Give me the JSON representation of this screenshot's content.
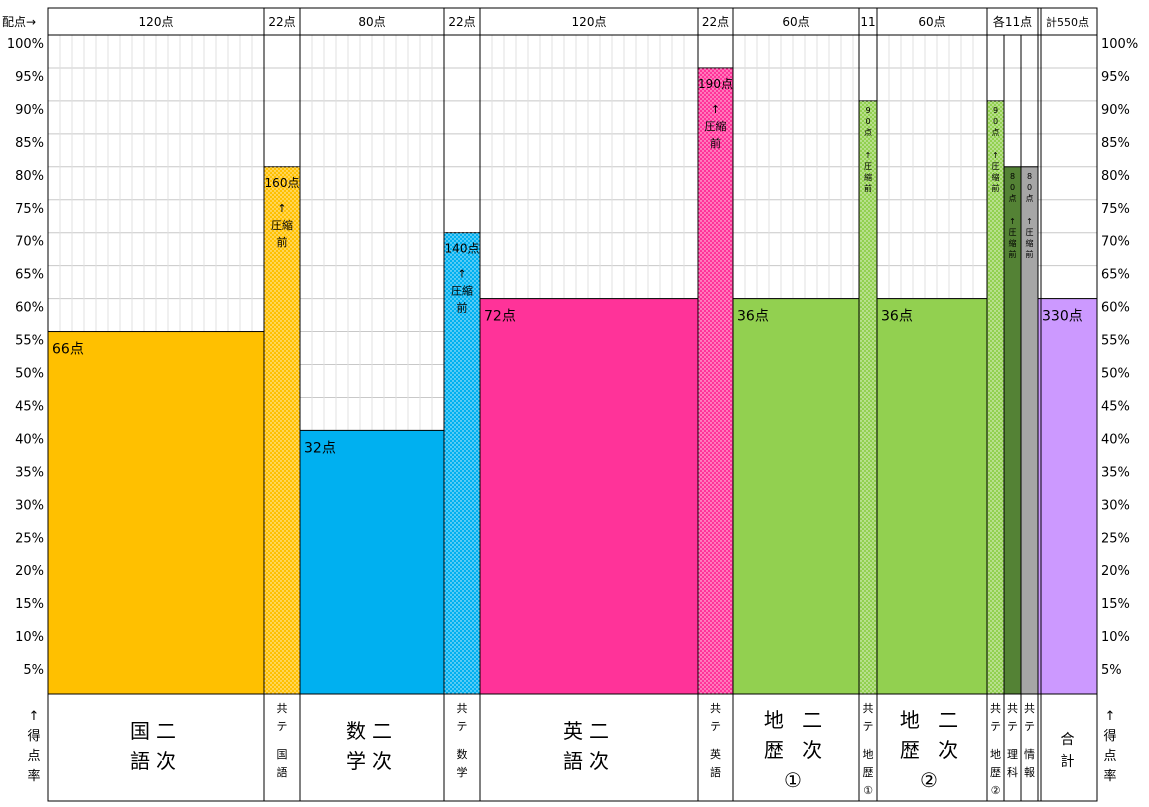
{
  "chart_data": {
    "type": "bar",
    "header_label": "配点→",
    "ylim": [
      0,
      100
    ],
    "yticks": [
      "100%",
      "95%",
      "90%",
      "85%",
      "80%",
      "75%",
      "70%",
      "65%",
      "60%",
      "55%",
      "50%",
      "45%",
      "40%",
      "35%",
      "30%",
      "25%",
      "20%",
      "15%",
      "10%",
      "5%"
    ],
    "y_axis_label_left": [
      "↑",
      "得",
      "点",
      "率"
    ],
    "y_axis_label_right": [
      "↑",
      "得",
      "点",
      "率"
    ],
    "columns": [
      {
        "id": "kokugo-niji",
        "allocation": "120点",
        "value": 55,
        "bar_label": "66点",
        "color": "#ffc000",
        "dotted": false,
        "subject_lines": [
          "国二",
          "語次"
        ],
        "big": true
      },
      {
        "id": "kyotsu-kokugo",
        "allocation": "22点",
        "value": 80,
        "bar_label": "160点",
        "bar_note": "↑\n圧縮\n前",
        "color": "#ffc000",
        "dotted": true,
        "subject_lines": [
          "共",
          "テ",
          "",
          "国",
          "語"
        ],
        "big": false
      },
      {
        "id": "sugaku-niji",
        "allocation": "80点",
        "value": 40,
        "bar_label": "32点",
        "color": "#00b0f0",
        "dotted": false,
        "subject_lines": [
          "数二",
          "学次"
        ],
        "big": true
      },
      {
        "id": "kyotsu-sugaku",
        "allocation": "22点",
        "value": 70,
        "bar_label": "140点",
        "bar_note": "↑\n圧縮\n前",
        "color": "#00b0f0",
        "dotted": true,
        "subject_lines": [
          "共",
          "テ",
          "",
          "数",
          "学"
        ],
        "big": false
      },
      {
        "id": "eigo-niji",
        "allocation": "120点",
        "value": 60,
        "bar_label": "72点",
        "color": "#ff3399",
        "dotted": false,
        "subject_lines": [
          "英二",
          "語次"
        ],
        "big": true
      },
      {
        "id": "kyotsu-eigo",
        "allocation": "22点",
        "value": 95,
        "bar_label": "190点",
        "bar_note": "↑\n圧縮\n前",
        "color": "#ff3399",
        "dotted": true,
        "subject_lines": [
          "共",
          "テ",
          "",
          "英",
          "語"
        ],
        "big": false
      },
      {
        "id": "chireki1-niji",
        "allocation": "60点",
        "value": 60,
        "bar_label": "36点",
        "color": "#92d050",
        "dotted": false,
        "subject_lines": [
          "地 二",
          "歴 次",
          "①"
        ],
        "big": true
      },
      {
        "id": "kyotsu-chireki1",
        "allocation": "11",
        "value": 90,
        "bar_label": "90点",
        "bar_note": "↑\n圧\n縮\n前",
        "color": "#92d050",
        "dotted": true,
        "vertical_label": true,
        "subject_lines": [
          "共",
          "テ",
          "",
          "地",
          "歴",
          "①"
        ],
        "big": false
      },
      {
        "id": "chireki2-niji",
        "allocation": "60点",
        "value": 60,
        "bar_label": "36点",
        "color": "#92d050",
        "dotted": false,
        "subject_lines": [
          "地 二",
          "歴 次",
          "②"
        ],
        "big": true
      },
      {
        "id": "kyotsu-chireki2",
        "allocation": "各11点",
        "value": 90,
        "bar_label": "90点",
        "bar_note": "↑\n圧\n縮\n前",
        "color": "#92d050",
        "dotted": true,
        "vertical_label": true,
        "subject_lines": [
          "共",
          "テ",
          "",
          "地",
          "歴",
          "②"
        ],
        "big": false
      },
      {
        "id": "kyotsu-rika",
        "allocation": "",
        "value": 80,
        "bar_label": "80点",
        "bar_note": "↑\n圧\n縮\n前",
        "color": "#548235",
        "dotted": false,
        "vertical_label": true,
        "subject_lines": [
          "共",
          "テ",
          "",
          "理",
          "科"
        ],
        "big": false
      },
      {
        "id": "kyotsu-joho",
        "allocation": "",
        "value": 80,
        "bar_label": "80点",
        "bar_note": "↑\n圧\n縮\n前",
        "color": "#a6a6a6",
        "dotted": false,
        "vertical_label": true,
        "subject_lines": [
          "共",
          "テ",
          "",
          "情",
          "報"
        ],
        "big": false
      },
      {
        "id": "gokei",
        "allocation": "計550点",
        "value": 60,
        "bar_label": "330点",
        "color": "#cc99ff",
        "dotted": false,
        "subject_lines": [
          "合",
          "計"
        ],
        "big": false
      }
    ]
  }
}
